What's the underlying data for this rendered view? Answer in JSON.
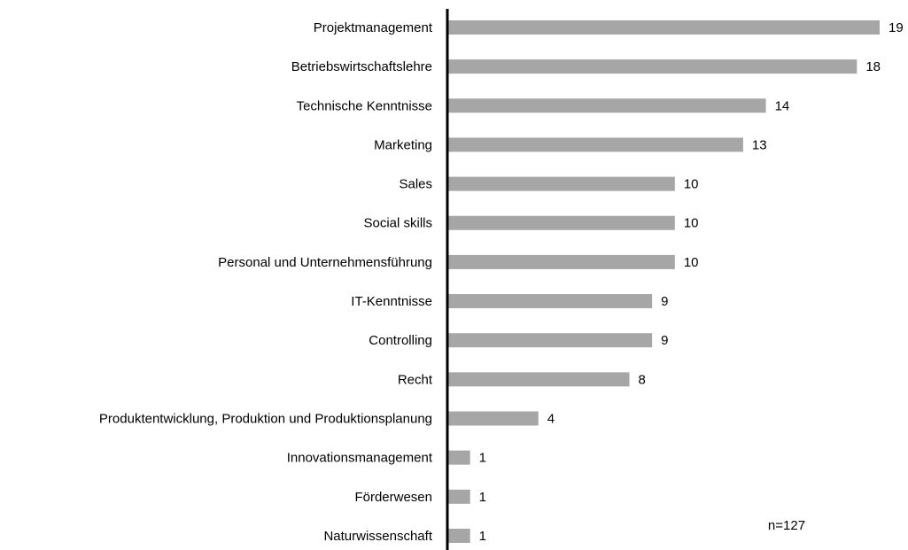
{
  "chart_data": {
    "type": "barh",
    "categories": [
      "Projektmanagement",
      "Betriebswirtschaftslehre",
      "Technische Kenntnisse",
      "Marketing",
      "Sales",
      "Social skills",
      "Personal und Unternehmensführung",
      "IT-Kenntnisse",
      "Controlling",
      "Recht",
      "Produktentwicklung, Produktion und Produktionsplanung",
      "Innovationsmanagement",
      "Förderwesen",
      "Naturwissenschaft"
    ],
    "values": [
      19,
      18,
      14,
      13,
      10,
      10,
      10,
      9,
      9,
      8,
      4,
      1,
      1,
      1
    ],
    "color": "#a6a6a6",
    "annotation": "n=127"
  }
}
